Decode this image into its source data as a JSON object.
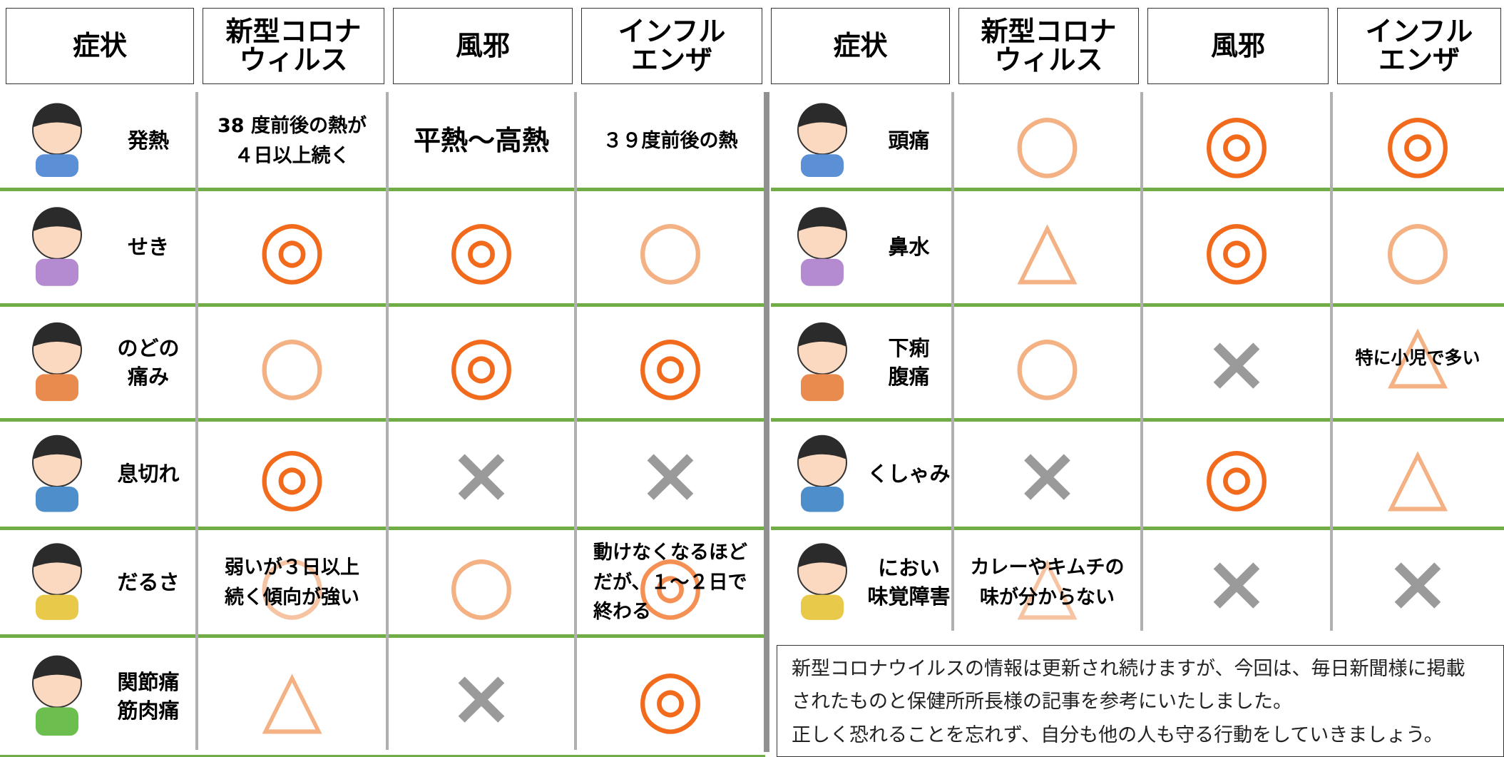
{
  "tables": [
    {
      "header": [
        "症状",
        "新型コロナ\nウィルス",
        "風邪",
        "インフル\nエンザ"
      ],
      "rows": [
        {
          "symptom": "発熱",
          "cells": [
            "38 度前後の熱が\n４日以上続く",
            "平熱～高熱",
            "３９度前後の熱"
          ]
        },
        {
          "symptom": "せき",
          "cells": [
            {
              "mark": "◎"
            },
            {
              "mark": "◎"
            },
            {
              "mark": "○"
            }
          ]
        },
        {
          "symptom": "のどの\n痛み",
          "cells": [
            {
              "mark": "○"
            },
            {
              "mark": "◎"
            },
            {
              "mark": "◎"
            }
          ]
        },
        {
          "symptom": "息切れ",
          "cells": [
            {
              "mark": "◎"
            },
            {
              "mark": "×"
            },
            {
              "mark": "×"
            }
          ]
        },
        {
          "symptom": "だるさ",
          "cells": [
            {
              "mark": "○",
              "note": "弱いが３日以上\n続く傾向が強い"
            },
            {
              "mark": "○"
            },
            {
              "mark": "◎",
              "note": "動けなくなるほど\nだが、１～２日で\n終わる"
            }
          ]
        },
        {
          "symptom": "関節痛\n筋肉痛",
          "cells": [
            {
              "mark": "△"
            },
            {
              "mark": "×"
            },
            {
              "mark": "◎"
            }
          ]
        }
      ]
    },
    {
      "header": [
        "症状",
        "新型コロナ\nウィルス",
        "風邪",
        "インフル\nエンザ"
      ],
      "rows": [
        {
          "symptom": "頭痛",
          "cells": [
            {
              "mark": "○"
            },
            {
              "mark": "◎"
            },
            {
              "mark": "◎"
            }
          ]
        },
        {
          "symptom": "鼻水",
          "cells": [
            {
              "mark": "△"
            },
            {
              "mark": "◎"
            },
            {
              "mark": "○"
            }
          ]
        },
        {
          "symptom": "下痢\n腹痛",
          "cells": [
            {
              "mark": "○"
            },
            {
              "mark": "×"
            },
            {
              "mark": "△",
              "note": "特に小児で多い"
            }
          ]
        },
        {
          "symptom": "くしゃみ",
          "cells": [
            {
              "mark": "×"
            },
            {
              "mark": "◎"
            },
            {
              "mark": "△"
            }
          ]
        },
        {
          "symptom": "におい\n味覚障害",
          "cells": [
            {
              "mark": "△",
              "note": "カレーやキムチの\n味が分からない"
            },
            {
              "mark": "×"
            },
            {
              "mark": "×"
            }
          ]
        }
      ]
    }
  ],
  "note": [
    "新型コロナウイルスの情報は更新され続けますが、今回は、毎日新聞様に掲載",
    "されたものと保健所所長様の記事を参考にいたしました。",
    "正しく恐れることを忘れず、自分も他の人も守る行動をしていきましょう。"
  ]
}
